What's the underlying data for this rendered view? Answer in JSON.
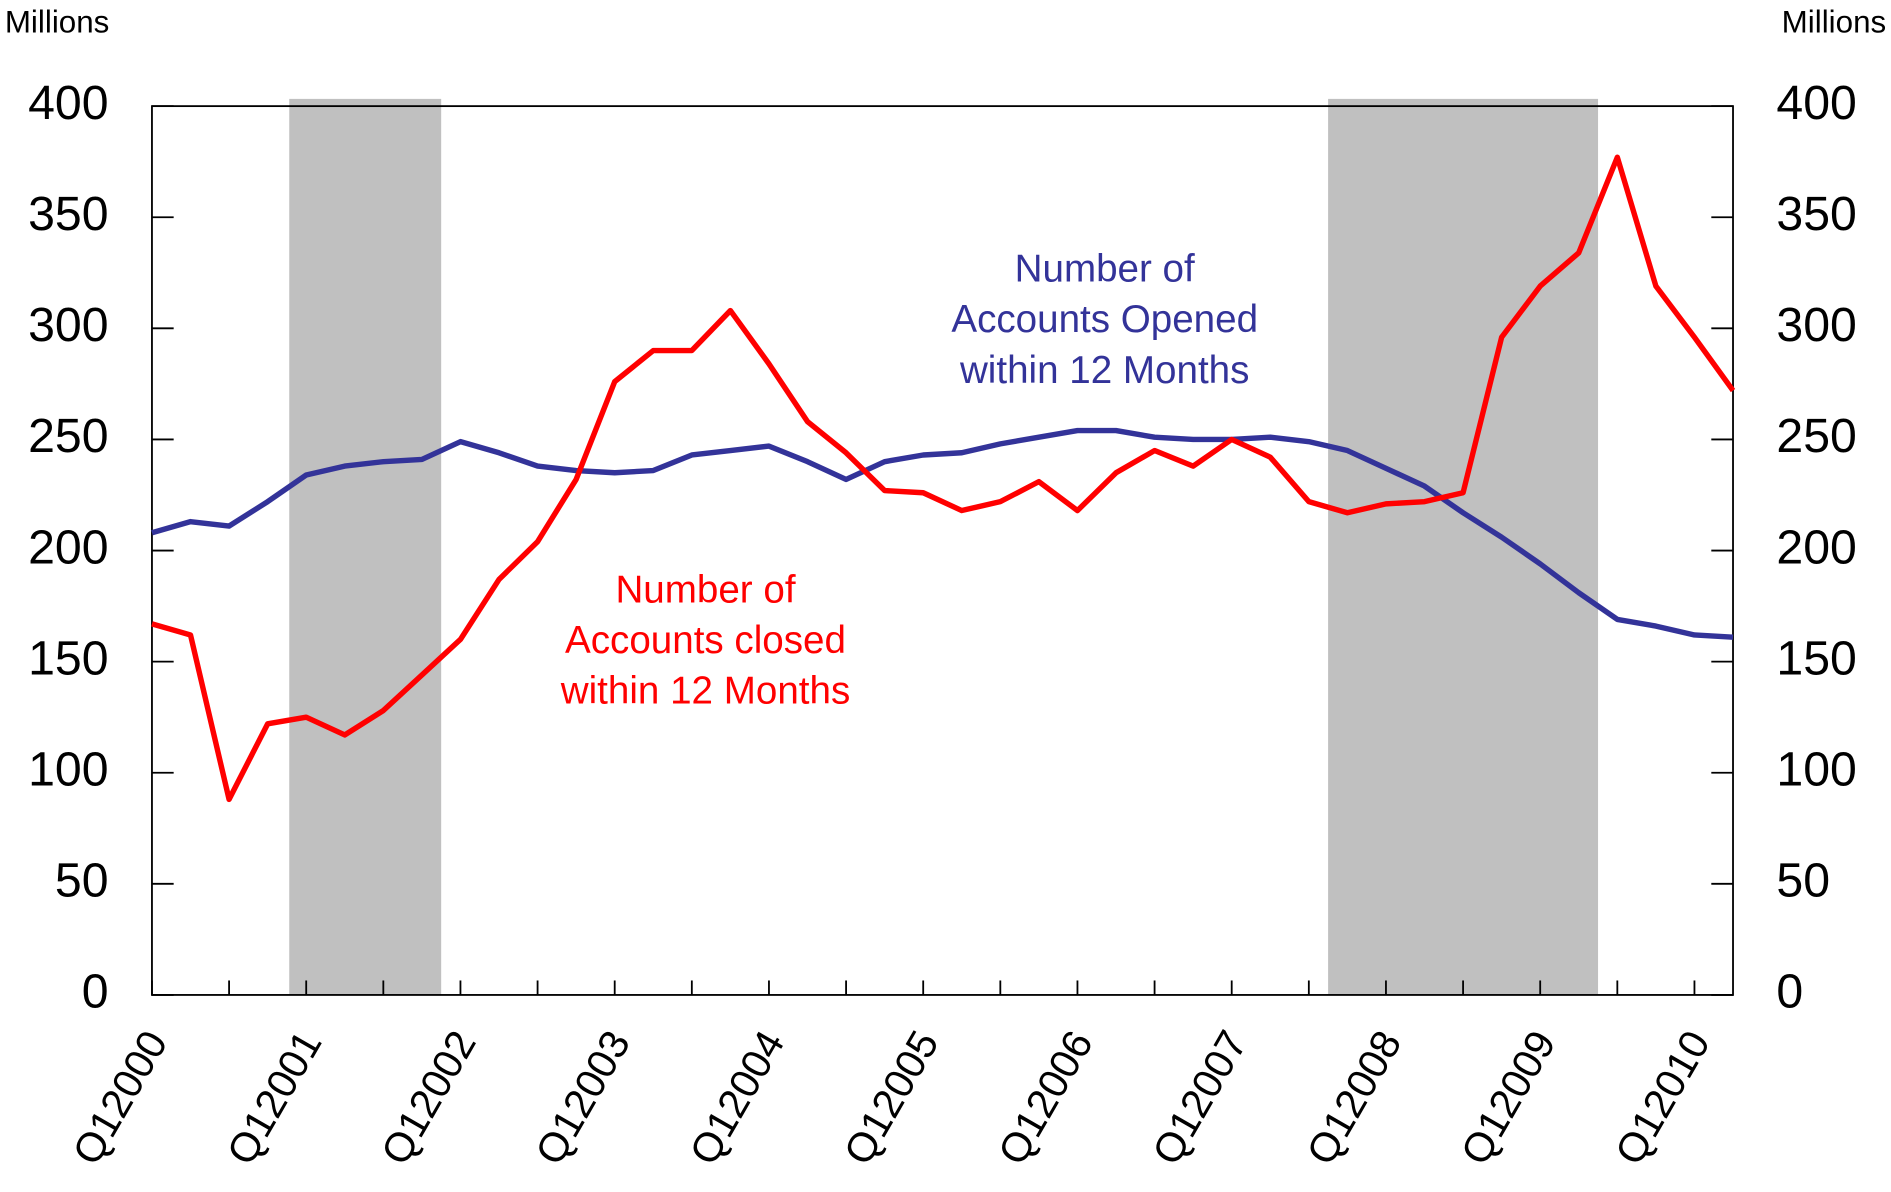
{
  "chart_data": {
    "type": "line",
    "y_label": "Millions",
    "y2_label": "Millions",
    "categories": [
      "Q12000",
      null,
      null,
      null,
      "Q12001",
      null,
      null,
      null,
      "Q12002",
      null,
      null,
      null,
      "Q12003",
      null,
      null,
      null,
      "Q12004",
      null,
      null,
      null,
      "Q12005",
      null,
      null,
      null,
      "Q12006",
      null,
      null,
      null,
      "Q12007",
      null,
      null,
      null,
      "Q12008",
      null,
      null,
      null,
      "Q12009",
      null,
      null,
      null,
      "Q12010",
      null
    ],
    "series": [
      {
        "name": "Number of Accounts closed within 12 Months",
        "color": "#ff0000",
        "values": [
          167,
          162,
          88,
          122,
          125,
          117,
          128,
          144,
          160,
          187,
          204,
          232,
          276,
          290,
          290,
          308,
          284,
          258,
          244,
          227,
          226,
          218,
          222,
          231,
          218,
          235,
          245,
          238,
          250,
          242,
          222,
          217,
          221,
          222,
          226,
          296,
          319,
          334,
          377,
          319,
          296,
          272
        ]
      },
      {
        "name": "Number of Accounts Opened within 12 Months",
        "color": "#333399",
        "values": [
          208,
          213,
          211,
          222,
          234,
          238,
          240,
          241,
          249,
          244,
          238,
          236,
          235,
          236,
          243,
          245,
          247,
          240,
          232,
          240,
          243,
          244,
          248,
          251,
          254,
          254,
          251,
          250,
          250,
          251,
          249,
          245,
          237,
          229,
          217,
          206,
          194,
          181,
          169,
          166,
          162,
          161
        ]
      }
    ],
    "annotations": [
      {
        "lines": [
          "Number of",
          "Accounts Opened",
          "within 12 Months"
        ],
        "color": "#333399"
      },
      {
        "lines": [
          "Number of",
          "Accounts closed",
          "within 12 Months"
        ],
        "color": "#ff0000"
      }
    ],
    "shaded_regions": [
      {
        "start": 3.56,
        "end": 7.5
      },
      {
        "start": 30.5,
        "end": 37.5
      }
    ],
    "shade_color": "#c0c0c0",
    "ylim": [
      0,
      400
    ],
    "yticks": [
      0,
      50,
      100,
      150,
      200,
      250,
      300,
      350,
      400
    ],
    "y2lim": [
      0,
      400
    ],
    "y2ticks": [
      0,
      50,
      100,
      150,
      200,
      250,
      300,
      350,
      400
    ]
  }
}
